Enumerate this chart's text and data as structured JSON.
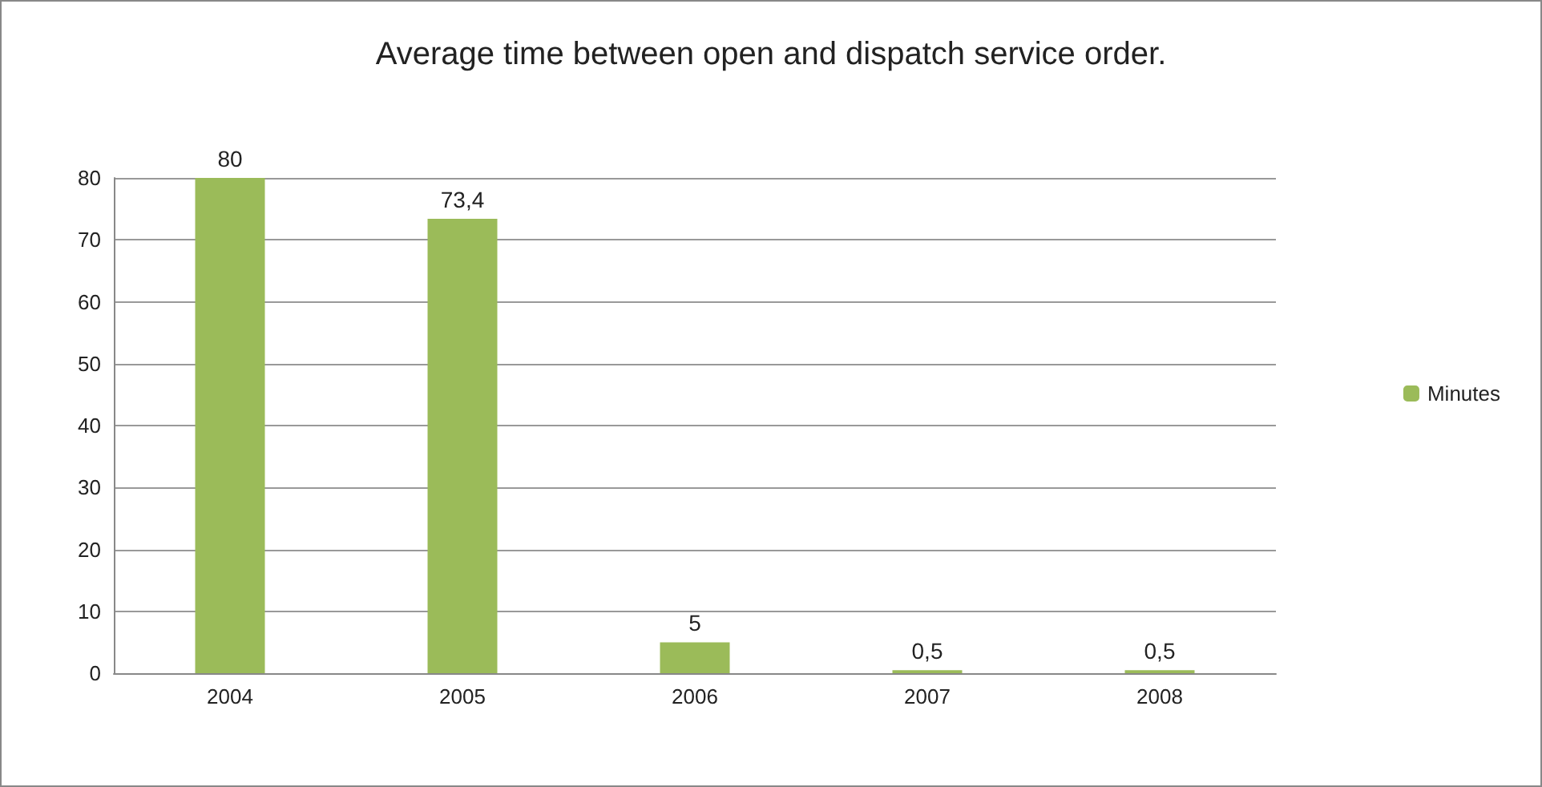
{
  "chart_data": {
    "type": "bar",
    "title": "Average time between open and dispatch service order.",
    "categories": [
      "2004",
      "2005",
      "2006",
      "2007",
      "2008"
    ],
    "series": [
      {
        "name": "Minutes",
        "color": "#9bbb59",
        "values": [
          80,
          73.4,
          5,
          0.5,
          0.5
        ],
        "value_labels": [
          "80",
          "73,4",
          "5",
          "0,5",
          "0,5"
        ]
      }
    ],
    "ylim": [
      0,
      80
    ],
    "yticks": [
      0,
      10,
      20,
      30,
      40,
      50,
      60,
      70,
      80
    ],
    "grid": "y",
    "legend": "right"
  }
}
